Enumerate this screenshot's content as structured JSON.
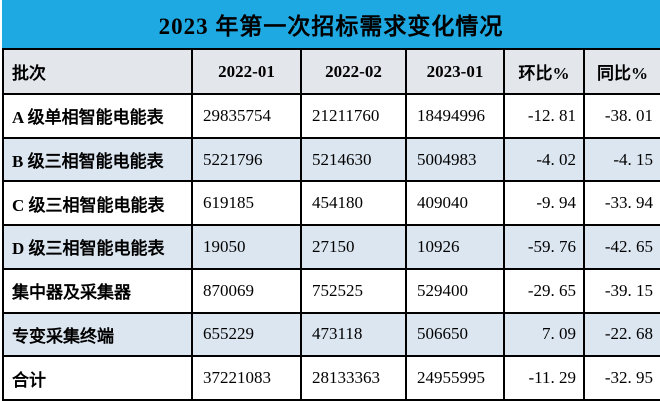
{
  "title": "2023 年第一次招标需求变化情况",
  "colors": {
    "title_bg": "#1FA9E2",
    "header_bg": "#E3E6EB",
    "row_alt_bg": "#DCE6F1",
    "row_bg": "#FFFFFF",
    "border": "#000000",
    "text": "#000000"
  },
  "chart_data": {
    "type": "table",
    "title": "2023 年第一次招标需求变化情况",
    "columns": [
      "批次",
      "2022-01",
      "2022-02",
      "2023-01",
      "环比%",
      "同比%"
    ],
    "rows": [
      [
        "A 级单相智能电能表",
        "29835754",
        "21211760",
        "18494996",
        "-12. 81",
        "-38. 01"
      ],
      [
        "B 级三相智能电能表",
        "5221796",
        "5214630",
        "5004983",
        "-4. 02",
        "-4. 15"
      ],
      [
        "C 级三相智能电能表",
        "619185",
        "454180",
        "409040",
        "-9. 94",
        "-33. 94"
      ],
      [
        "D 级三相智能电能表",
        "19050",
        "27150",
        "10926",
        "-59. 76",
        "-42. 65"
      ],
      [
        "集中器及采集器",
        "870069",
        "752525",
        "529400",
        "-29. 65",
        "-39. 15"
      ],
      [
        "专变采集终端",
        "655229",
        "473118",
        "506650",
        "7. 09",
        "-22. 68"
      ],
      [
        "合计",
        "37221083",
        "28133363",
        "24955995",
        "-11. 29",
        "-32. 95"
      ]
    ]
  }
}
